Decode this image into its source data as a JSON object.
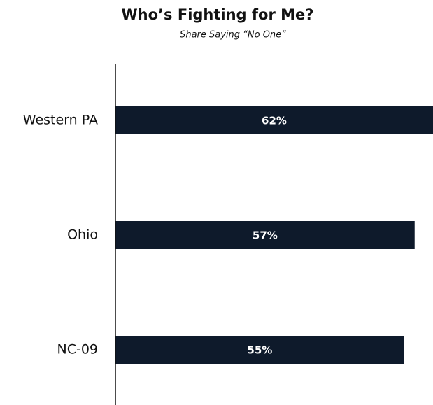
{
  "chart_data": {
    "type": "barh",
    "title": "Who’s Fighting for Me?",
    "subtitle": "Share Saying “No One”",
    "categories": [
      "Western PA",
      "Ohio",
      "NC-09"
    ],
    "values": [
      62,
      57,
      55
    ],
    "value_labels": [
      "62%",
      "57%",
      "55%"
    ],
    "color": "#0e1a2b",
    "xlim": [
      0,
      60.5
    ]
  }
}
